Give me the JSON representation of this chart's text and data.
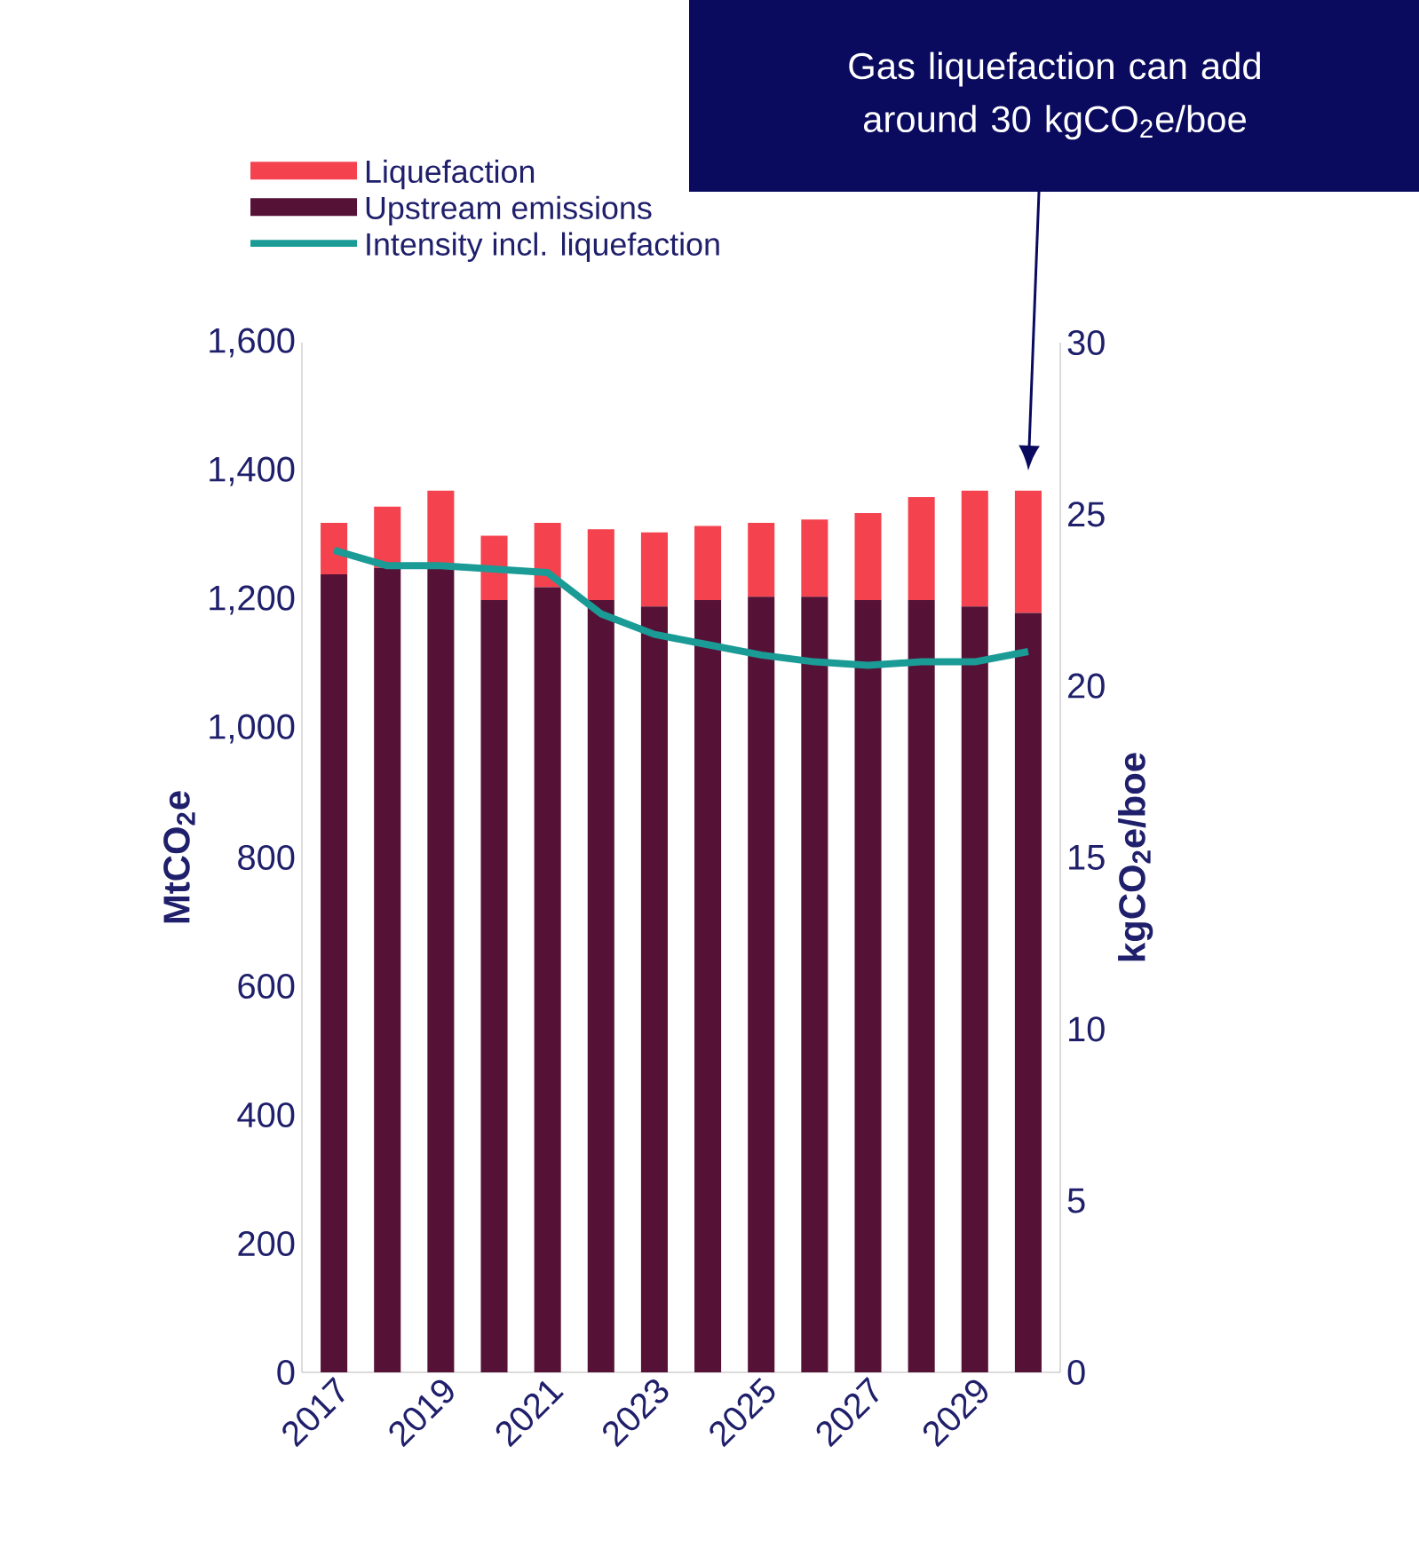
{
  "chart_data": {
    "type": "bar",
    "stacked": true,
    "categories": [
      "2017",
      null,
      "2019",
      null,
      "2021",
      null,
      "2023",
      null,
      "2025",
      null,
      "2027",
      null,
      "2029",
      null
    ],
    "series": [
      {
        "name": "Liquefaction",
        "color": "#f5424f",
        "values": [
          80,
          95,
          120,
          100,
          100,
          110,
          115,
          115,
          115,
          120,
          135,
          160,
          180,
          190
        ]
      },
      {
        "name": "Upstream emissions",
        "color": "#561236",
        "values": [
          1240,
          1250,
          1250,
          1200,
          1220,
          1200,
          1190,
          1200,
          1205,
          1205,
          1200,
          1200,
          1190,
          1180
        ]
      },
      {
        "name": "Intensity incl. liquefaction",
        "type": "line",
        "axis": "y2",
        "color": "#1a9b96",
        "values": [
          23.95,
          23.5,
          23.5,
          23.4,
          23.3,
          22.1,
          21.5,
          21.2,
          20.9,
          20.7,
          20.6,
          20.7,
          20.7,
          21.0
        ]
      }
    ],
    "ylabel": "MtCO$_{2}$e",
    "y2label": "kgCO$_{2}$e/boe",
    "ylim": [
      0,
      1600
    ],
    "yticks": [
      0,
      200,
      400,
      600,
      800,
      {
        "value": 1000,
        "label": "1,000"
      },
      {
        "value": 1200,
        "label": "1,200"
      },
      {
        "value": 1400,
        "label": "1,400"
      },
      {
        "value": 1600,
        "label": "1,600"
      }
    ],
    "y2lim": [
      0,
      30
    ],
    "y2ticks": [
      0,
      5,
      10,
      15,
      20,
      25,
      30
    ],
    "legend": "top left",
    "annotations": [
      "Gas liquefaction can add around 30 kgCO$_{2}$e/boe"
    ]
  }
}
